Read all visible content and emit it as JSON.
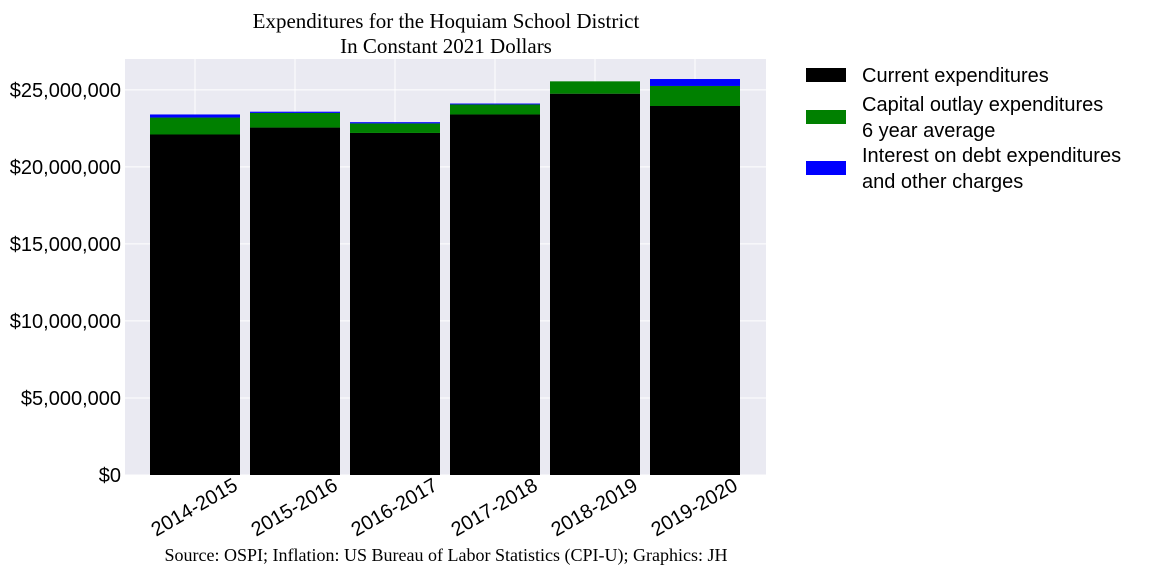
{
  "chart_data": {
    "type": "bar",
    "stacked": true,
    "title": "Expenditures for the Hoquiam School District",
    "subtitle": "In Constant 2021 Dollars",
    "source": "Source: OSPI; Inflation: US Bureau of Labor Statistics (CPI-U); Graphics: JH",
    "categories": [
      "2014-2015",
      "2015-2016",
      "2016-2017",
      "2017-2018",
      "2018-2019",
      "2019-2020"
    ],
    "series": [
      {
        "name": "Current expenditures",
        "color": "#000000",
        "values": [
          22100000,
          22550000,
          22200000,
          23400000,
          24750000,
          23950000
        ]
      },
      {
        "name": "Capital outlay expenditures\n6 year average",
        "color": "#008000",
        "values": [
          1100000,
          950000,
          620000,
          650000,
          800000,
          1300000
        ]
      },
      {
        "name": "Interest on debt expenditures\nand other charges",
        "color": "#0000ff",
        "values": [
          200000,
          80000,
          80000,
          60000,
          0,
          450000
        ]
      }
    ],
    "yticks": [
      "$0",
      "$5,000,000",
      "$10,000,000",
      "$15,000,000",
      "$20,000,000",
      "$25,000,000"
    ],
    "ylim": [
      0,
      27000000
    ],
    "grid": true,
    "legend_position": "right"
  }
}
